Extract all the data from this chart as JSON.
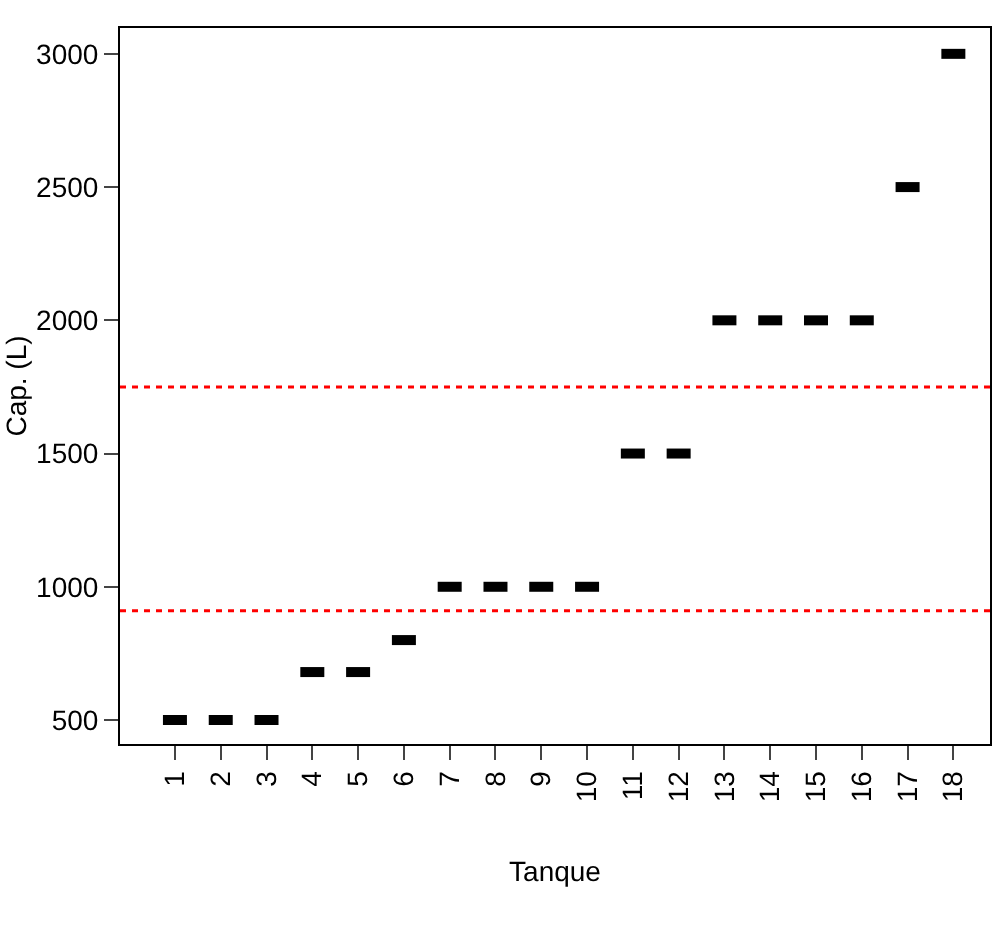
{
  "chart_data": {
    "type": "scatter",
    "xlabel": "Tanque",
    "ylabel": "Cap. (L)",
    "categories": [
      "1",
      "2",
      "3",
      "4",
      "5",
      "6",
      "7",
      "8",
      "9",
      "10",
      "11",
      "12",
      "13",
      "14",
      "15",
      "16",
      "17",
      "18"
    ],
    "values": [
      500,
      500,
      500,
      680,
      680,
      800,
      1000,
      1000,
      1000,
      1000,
      1500,
      1500,
      2000,
      2000,
      2000,
      2000,
      2500,
      3000
    ],
    "color": "#000000",
    "ylim": [
      410,
      3097
    ],
    "yticks": [
      500,
      1000,
      1500,
      2000,
      2500,
      3000
    ],
    "ref_lines": [
      {
        "axis": "y",
        "value": 1750,
        "color": "#ff0000",
        "line_style": "dotted"
      },
      {
        "axis": "y",
        "value": 910,
        "color": "#ff0000",
        "line_style": "dotted"
      }
    ],
    "grid": false
  }
}
